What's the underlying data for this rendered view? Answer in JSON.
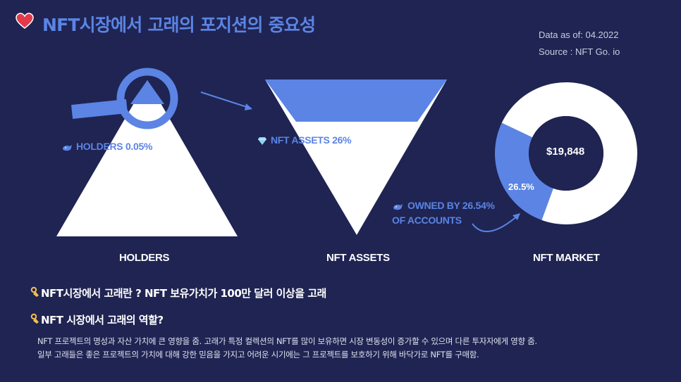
{
  "title": "NFT시장에서 고래의 포지션의 중요성",
  "meta": {
    "date": "Data as of: 04.2022",
    "source": "Source : NFT Go. io"
  },
  "icons": {
    "title_icon": "heart-icon",
    "holders_icon": "whale-icon",
    "assets_icon": "diamond-icon",
    "owned_icon": "whale-icon",
    "question_icon": "ok-hand-icon"
  },
  "colors": {
    "background": "#1f2452",
    "accent": "#5b84e4",
    "white": "#ffffff"
  },
  "panels": {
    "holders": {
      "label": "HOLDERS",
      "callout": "HOLDERS 0.05%"
    },
    "assets": {
      "label": "NFT ASSETS",
      "callout": "NFT ASSETS   26%"
    },
    "market": {
      "label": "NFT MARKET",
      "center_value": "$19,848",
      "slice_label": "26.5%",
      "callout_line1": "OWNED BY 26.54%",
      "callout_line2": "OF ACCOUNTS"
    }
  },
  "chart_data": [
    {
      "type": "pie",
      "title": "NFT MARKET",
      "center_label": "$19,848",
      "slices": [
        {
          "label": "26.5%",
          "value": 26.5,
          "color": "#5b84e4"
        },
        {
          "label": "",
          "value": 73.5,
          "color": "#ffffff"
        }
      ]
    }
  ],
  "questions": {
    "q1": "NFT시장에서 고래란 ? NFT 보유가치가 100만 달러 이상을 고래",
    "q2": "NFT 시장에서 고래의 역할?"
  },
  "body": {
    "line1": "NFT 프로젝트의 명성과 자산 가치에 큰 영향을 줌. 고래가 특정 컬렉션의 NFT를 많이 보유하면 시장 변동성이 증가할 수 있으며 다른 투자자에게 영향 줌.",
    "line2": "일부 고래들은 좋은 프로젝트의 가치에 대해 강한 믿음을 가지고 어려운 시기에는 그 프로젝트를 보호하기 위해 바닥가로 NFT를 구매함."
  }
}
